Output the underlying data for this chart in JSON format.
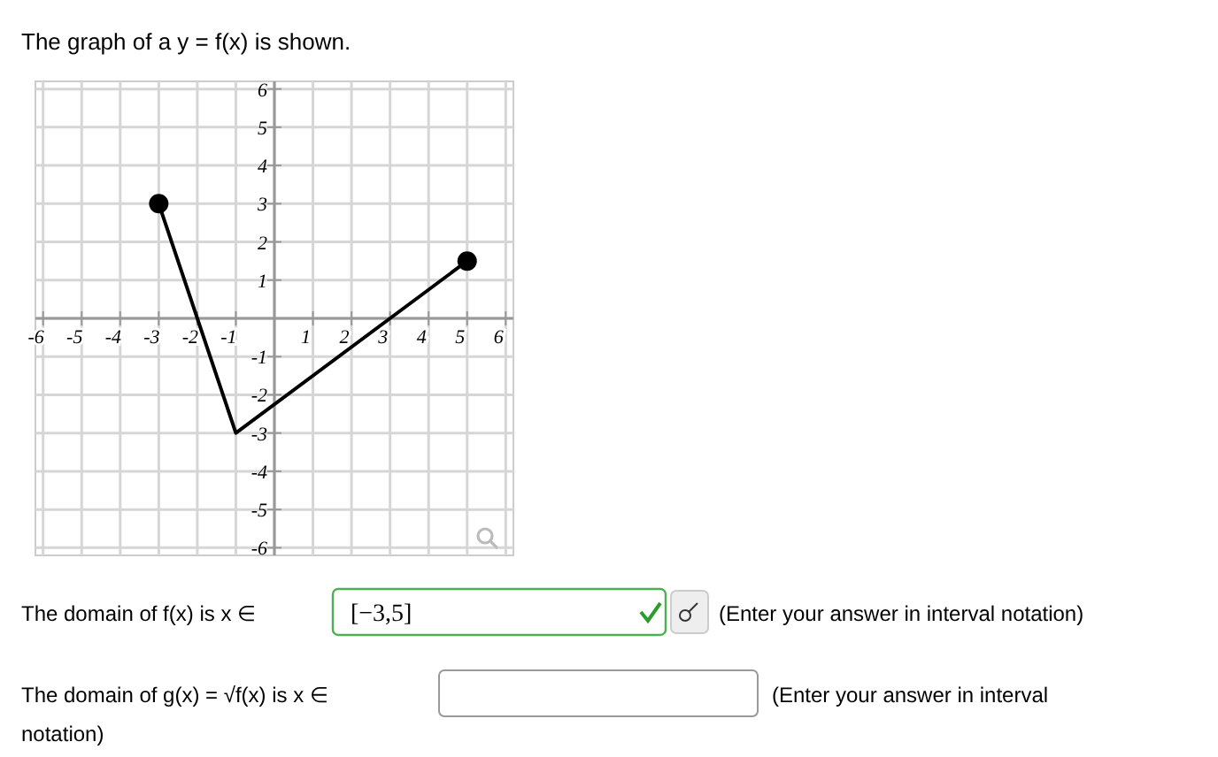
{
  "chart_data": {
    "type": "line",
    "title": "The graph of a y = f(x) is shown.",
    "series": [
      {
        "type": "line",
        "x": [
          -3,
          -1,
          5
        ],
        "values": [
          3,
          -3,
          1.5
        ],
        "color": "#000000",
        "marker": "none"
      },
      {
        "type": "scatter",
        "x": [
          -3,
          5
        ],
        "values": [
          3,
          1.5
        ],
        "color": "#000000",
        "marker": "circle"
      }
    ],
    "xlim": [
      -6.2,
      6.2
    ],
    "ylim": [
      -6.2,
      6.2
    ],
    "xticks": [
      -6,
      -5,
      -4,
      -3,
      -2,
      -1,
      {
        "value": 0,
        "label": null
      },
      1,
      2,
      3,
      4,
      5,
      6
    ],
    "yticks": [
      -6,
      -5,
      -4,
      -3,
      -2,
      -1,
      {
        "value": 0,
        "label": null
      },
      1,
      2,
      3,
      4,
      5,
      6
    ],
    "grid": true,
    "annotations": [
      "The domain of f(x) is x ∈",
      "[−3,5]",
      "(Enter your answer in interval notation)",
      "The domain of g(x) = √f(x) is x ∈",
      "(Enter your answer in interval notation)"
    ]
  }
}
